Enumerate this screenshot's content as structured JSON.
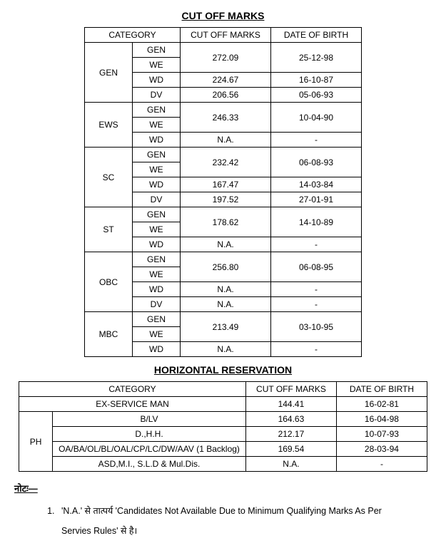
{
  "titles": {
    "cutoff": "CUT OFF MARKS",
    "horizontal": "HORIZONTAL RESERVATION"
  },
  "headers": {
    "category": "CATEGORY",
    "cutoff": "CUT OFF MARKS",
    "dob": "DATE OF BIRTH"
  },
  "subs": {
    "gen": "GEN",
    "we": "WE",
    "wd": "WD",
    "dv": "DV"
  },
  "cats": {
    "gen": {
      "label": "GEN",
      "rows": [
        {
          "sub": "GEN",
          "marks": "272.09",
          "dob": "25-12-98",
          "merge": 2
        },
        {
          "sub": "WE"
        },
        {
          "sub": "WD",
          "marks": "224.67",
          "dob": "16-10-87"
        },
        {
          "sub": "DV",
          "marks": "206.56",
          "dob": "05-06-93"
        }
      ]
    },
    "ews": {
      "label": "EWS",
      "rows": [
        {
          "sub": "GEN",
          "marks": "246.33",
          "dob": "10-04-90",
          "merge": 2
        },
        {
          "sub": "WE"
        },
        {
          "sub": "WD",
          "marks": "N.A.",
          "dob": "-"
        }
      ]
    },
    "sc": {
      "label": "SC",
      "rows": [
        {
          "sub": "GEN",
          "marks": "232.42",
          "dob": "06-08-93",
          "merge": 2
        },
        {
          "sub": "WE"
        },
        {
          "sub": "WD",
          "marks": "167.47",
          "dob": "14-03-84"
        },
        {
          "sub": "DV",
          "marks": "197.52",
          "dob": "27-01-91"
        }
      ]
    },
    "st": {
      "label": "ST",
      "rows": [
        {
          "sub": "GEN",
          "marks": "178.62",
          "dob": "14-10-89",
          "merge": 2
        },
        {
          "sub": "WE"
        },
        {
          "sub": "WD",
          "marks": "N.A.",
          "dob": "-"
        }
      ]
    },
    "obc": {
      "label": "OBC",
      "rows": [
        {
          "sub": "GEN",
          "marks": "256.80",
          "dob": "06-08-95",
          "merge": 2
        },
        {
          "sub": "WE"
        },
        {
          "sub": "WD",
          "marks": "N.A.",
          "dob": "-"
        },
        {
          "sub": "DV",
          "marks": "N.A.",
          "dob": "-"
        }
      ]
    },
    "mbc": {
      "label": "MBC",
      "rows": [
        {
          "sub": "GEN",
          "marks": "213.49",
          "dob": "03-10-95",
          "merge": 2
        },
        {
          "sub": "WE"
        },
        {
          "sub": "WD",
          "marks": "N.A.",
          "dob": "-"
        }
      ]
    }
  },
  "horizontal": {
    "ex": {
      "label": "EX-SERVICE MAN",
      "marks": "144.41",
      "dob": "16-02-81"
    },
    "ph_label": "PH",
    "ph": [
      {
        "label": "B/LV",
        "marks": "164.63",
        "dob": "16-04-98"
      },
      {
        "label": "D.,H.H.",
        "marks": "212.17",
        "dob": "10-07-93"
      },
      {
        "label": "OA/BA/OL/BL/OAL/CP/LC/DW/AAV (1 Backlog)",
        "marks": "169.54",
        "dob": "28-03-94"
      },
      {
        "label": "ASD,M.I., S.L.D & Mul.Dis.",
        "marks": "N.A.",
        "dob": "-"
      }
    ]
  },
  "note": {
    "label": "नोटः—",
    "item1": "'N.A.' से तात्पर्य 'Candidates Not Available Due to Minimum Qualifying Marks As Per Servies Rules' से है।"
  }
}
